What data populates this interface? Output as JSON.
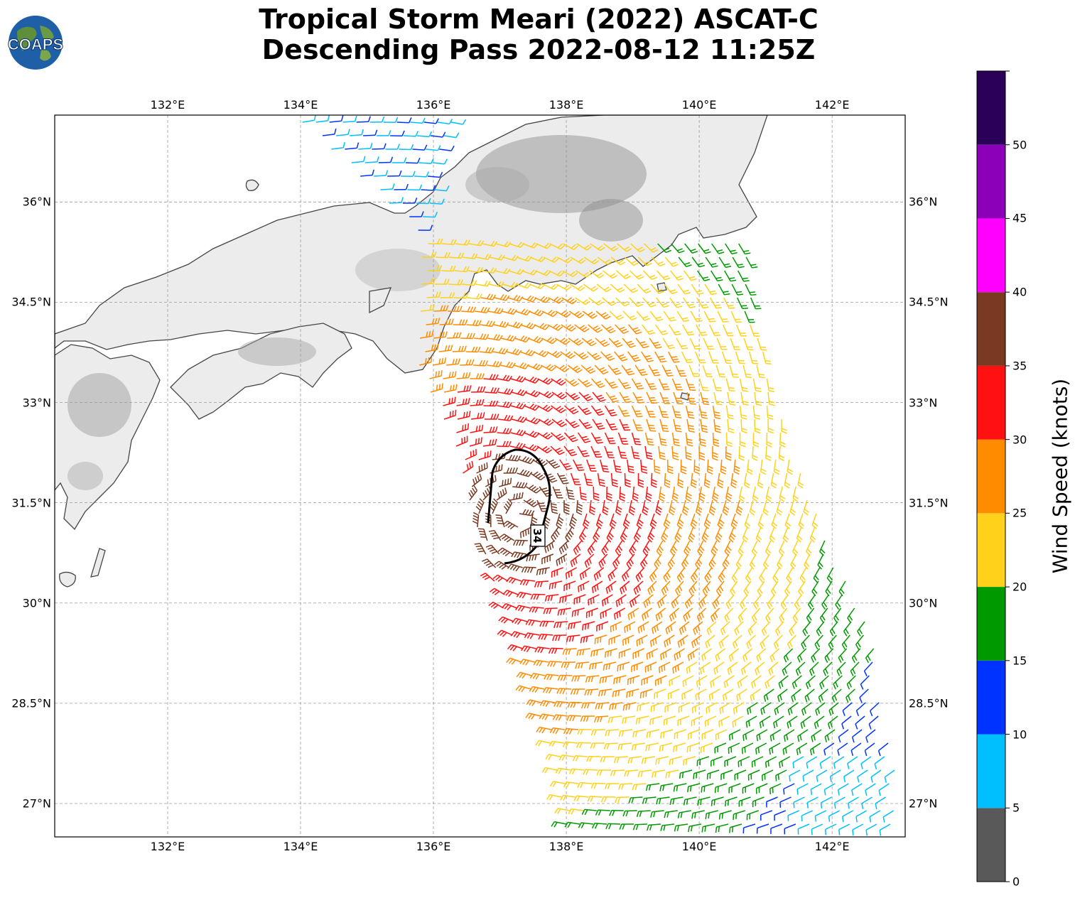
{
  "title": {
    "line1": "Tropical Storm Meari (2022) ASCAT-C",
    "line2": "Descending Pass 2022-08-12 11:25Z"
  },
  "logo": {
    "text": "COAPS"
  },
  "map": {
    "lon_range": [
      130.3,
      143.1
    ],
    "lat_range": [
      26.5,
      37.3
    ],
    "lon_ticks": [
      "132°E",
      "134°E",
      "136°E",
      "138°E",
      "140°E",
      "142°E"
    ],
    "lat_ticks": [
      "36°N",
      "34.5°N",
      "33°N",
      "31.5°N",
      "30°N",
      "28.5°N",
      "27°N"
    ],
    "gridlines": true,
    "storm_center": {
      "lon": 137.3,
      "lat": 31.3
    },
    "contour_label": "34"
  },
  "colorbar": {
    "label": "Wind Speed (knots)",
    "ticks": [
      "0",
      "5",
      "10",
      "15",
      "20",
      "25",
      "30",
      "35",
      "40",
      "45",
      "50"
    ],
    "colors": [
      "#595959",
      "#00bfff",
      "#0033ff",
      "#009900",
      "#ffd11a",
      "#ff8c00",
      "#ff1111",
      "#7a3a22",
      "#ff00ff",
      "#8b00b8",
      "#2b0058"
    ]
  }
}
